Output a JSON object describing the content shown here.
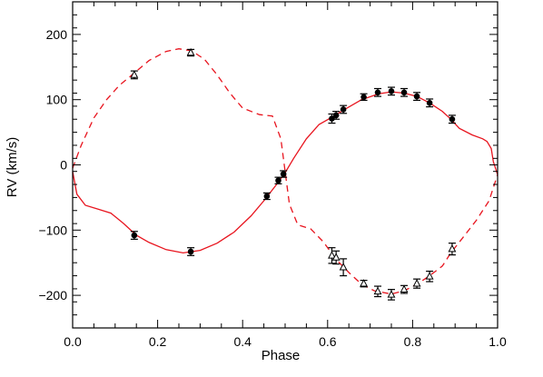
{
  "chart_data": {
    "type": "scatter",
    "title": "",
    "xlabel": "Phase",
    "ylabel": "RV (km/s)",
    "xlim": [
      0.0,
      1.0
    ],
    "ylim": [
      -250,
      250
    ],
    "xticks": [
      0.0,
      0.2,
      0.4,
      0.6,
      0.8,
      1.0
    ],
    "xtick_labels": [
      "0.0",
      "0.2",
      "0.4",
      "0.6",
      "0.8",
      "1.0"
    ],
    "yticks": [
      -200,
      -100,
      0,
      100,
      200
    ],
    "ytick_labels": [
      "−200",
      "−100",
      "0",
      "100",
      "200"
    ],
    "grid": false,
    "line_color": "#e8141e",
    "marker_color": "#000000",
    "series": [
      {
        "marker": "filled-circle",
        "points": [
          {
            "x": 0.145,
            "y": -108,
            "err": 6
          },
          {
            "x": 0.278,
            "y": -133,
            "err": 6
          },
          {
            "x": 0.457,
            "y": -48,
            "err": 5
          },
          {
            "x": 0.484,
            "y": -24,
            "err": 5
          },
          {
            "x": 0.496,
            "y": -14,
            "err": 5
          },
          {
            "x": 0.61,
            "y": 71,
            "err": 7
          },
          {
            "x": 0.62,
            "y": 76,
            "err": 6
          },
          {
            "x": 0.637,
            "y": 85,
            "err": 6
          },
          {
            "x": 0.685,
            "y": 104,
            "err": 5
          },
          {
            "x": 0.718,
            "y": 111,
            "err": 6
          },
          {
            "x": 0.75,
            "y": 113,
            "err": 6
          },
          {
            "x": 0.78,
            "y": 111,
            "err": 6
          },
          {
            "x": 0.81,
            "y": 105,
            "err": 6
          },
          {
            "x": 0.84,
            "y": 95,
            "err": 6
          },
          {
            "x": 0.893,
            "y": 70,
            "err": 6
          }
        ]
      },
      {
        "marker": "open-triangle",
        "points": [
          {
            "x": 0.145,
            "y": 138,
            "err": 6
          },
          {
            "x": 0.278,
            "y": 172,
            "err": 5
          },
          {
            "x": 0.61,
            "y": -139,
            "err": 12
          },
          {
            "x": 0.62,
            "y": -142,
            "err": 10
          },
          {
            "x": 0.637,
            "y": -157,
            "err": 13
          },
          {
            "x": 0.685,
            "y": -182,
            "err": 5
          },
          {
            "x": 0.718,
            "y": -194,
            "err": 8
          },
          {
            "x": 0.75,
            "y": -199,
            "err": 8
          },
          {
            "x": 0.78,
            "y": -191,
            "err": 6
          },
          {
            "x": 0.81,
            "y": -182,
            "err": 7
          },
          {
            "x": 0.84,
            "y": -171,
            "err": 8
          },
          {
            "x": 0.893,
            "y": -129,
            "err": 9
          }
        ]
      }
    ],
    "curves": [
      {
        "style": "solid",
        "points": [
          [
            0.0,
            -10
          ],
          [
            0.01,
            -45
          ],
          [
            0.03,
            -62
          ],
          [
            0.06,
            -68
          ],
          [
            0.09,
            -74
          ],
          [
            0.12,
            -90
          ],
          [
            0.15,
            -108
          ],
          [
            0.18,
            -119
          ],
          [
            0.22,
            -130
          ],
          [
            0.26,
            -135
          ],
          [
            0.3,
            -131
          ],
          [
            0.34,
            -120
          ],
          [
            0.38,
            -103
          ],
          [
            0.42,
            -78
          ],
          [
            0.45,
            -55
          ],
          [
            0.48,
            -30
          ],
          [
            0.5,
            -12
          ],
          [
            0.52,
            10
          ],
          [
            0.55,
            40
          ],
          [
            0.58,
            62
          ],
          [
            0.61,
            73
          ],
          [
            0.64,
            85
          ],
          [
            0.68,
            100
          ],
          [
            0.72,
            109
          ],
          [
            0.75,
            112
          ],
          [
            0.78,
            110
          ],
          [
            0.81,
            105
          ],
          [
            0.84,
            95
          ],
          [
            0.87,
            82
          ],
          [
            0.89,
            70
          ],
          [
            0.91,
            56
          ],
          [
            0.94,
            46
          ],
          [
            0.965,
            40
          ],
          [
            0.975,
            36
          ],
          [
            0.985,
            25
          ],
          [
            0.99,
            5
          ],
          [
            1.0,
            -15
          ]
        ]
      },
      {
        "style": "dashed",
        "points": [
          [
            0.0,
            -5
          ],
          [
            0.02,
            30
          ],
          [
            0.05,
            72
          ],
          [
            0.08,
            100
          ],
          [
            0.11,
            122
          ],
          [
            0.14,
            138
          ],
          [
            0.18,
            160
          ],
          [
            0.22,
            174
          ],
          [
            0.25,
            178
          ],
          [
            0.28,
            175
          ],
          [
            0.31,
            162
          ],
          [
            0.34,
            138
          ],
          [
            0.37,
            110
          ],
          [
            0.4,
            87
          ],
          [
            0.44,
            77
          ],
          [
            0.47,
            75
          ],
          [
            0.49,
            40
          ],
          [
            0.51,
            -60
          ],
          [
            0.53,
            -92
          ],
          [
            0.56,
            -98
          ],
          [
            0.59,
            -118
          ],
          [
            0.62,
            -145
          ],
          [
            0.65,
            -165
          ],
          [
            0.68,
            -183
          ],
          [
            0.71,
            -193
          ],
          [
            0.75,
            -198
          ],
          [
            0.78,
            -193
          ],
          [
            0.81,
            -183
          ],
          [
            0.84,
            -170
          ],
          [
            0.87,
            -155
          ],
          [
            0.89,
            -135
          ],
          [
            0.92,
            -110
          ],
          [
            0.95,
            -85
          ],
          [
            0.98,
            -55
          ],
          [
            1.0,
            -15
          ]
        ]
      }
    ]
  }
}
